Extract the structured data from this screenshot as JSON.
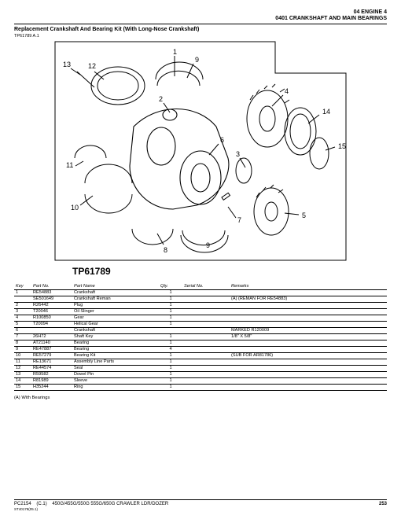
{
  "header": {
    "line1": "04 ENGINE  4",
    "line2": "0401 CRANKSHAFT AND MAIN BEARINGS"
  },
  "title": "Replacement Crankshaft And Bearing Kit (With Long-Nose Crankshaft)",
  "figure_ref": "TP61789 A.1",
  "diagram": {
    "label": "TP61789",
    "callouts": [
      "1",
      "2",
      "3",
      "4",
      "5",
      "6",
      "7",
      "8",
      "9",
      "10",
      "11",
      "12",
      "13",
      "14",
      "15"
    ],
    "stroke": "#000000",
    "fill": "#ffffff"
  },
  "table": {
    "headers": {
      "key": "Key",
      "part_no": "Part No.",
      "part_name": "Part Name",
      "qty": "Qty.",
      "serial_no": "Serial No.",
      "remarks": "Remarks"
    },
    "rows": [
      {
        "key": "1",
        "part_no": "RE54883",
        "part_name": "Crankshaft",
        "qty": "1",
        "serial_no": "",
        "remarks": ""
      },
      {
        "key": "",
        "part_no": "SE501649",
        "part_name": "Crankshaft Reman",
        "qty": "1",
        "serial_no": "",
        "remarks": "(A) (REMAN FOR RE54883)"
      },
      {
        "key": "2",
        "part_no": "R26442",
        "part_name": "Plug",
        "qty": "1",
        "serial_no": "",
        "remarks": ""
      },
      {
        "key": "3",
        "part_no": "T20046",
        "part_name": "Oil Slinger",
        "qty": "1",
        "serial_no": "",
        "remarks": ""
      },
      {
        "key": "4",
        "part_no": "R100850",
        "part_name": "Gear",
        "qty": "1",
        "serial_no": "",
        "remarks": ""
      },
      {
        "key": "5",
        "part_no": "T20094",
        "part_name": "Helical Gear",
        "qty": "1",
        "serial_no": "",
        "remarks": ""
      },
      {
        "key": "6",
        "part_no": "",
        "part_name": "Crankshaft",
        "qty": "",
        "serial_no": "",
        "remarks": "MARKED R120009"
      },
      {
        "key": "7",
        "part_no": "26H72",
        "part_name": "Shaft Key",
        "qty": "1",
        "serial_no": "",
        "remarks": "1/8\" X 5/8\""
      },
      {
        "key": "8",
        "part_no": "AT21140",
        "part_name": "Bearing",
        "qty": "1",
        "serial_no": "",
        "remarks": ""
      },
      {
        "key": "9",
        "part_no": "RE47887",
        "part_name": "Bearing",
        "qty": "4",
        "serial_no": "",
        "remarks": ""
      },
      {
        "key": "10",
        "part_no": "RE57279",
        "part_name": "Bearing Kit",
        "qty": "1",
        "serial_no": "",
        "remarks": "(SUB FOR AR81786)"
      },
      {
        "key": "11",
        "part_no": "RE13671",
        "part_name": "Assembly Line Parts",
        "qty": "1",
        "serial_no": "",
        "remarks": ""
      },
      {
        "key": "12",
        "part_no": "RE44574",
        "part_name": "Seal",
        "qty": "1",
        "serial_no": "",
        "remarks": ""
      },
      {
        "key": "13",
        "part_no": "R59582",
        "part_name": "Dowel Pin",
        "qty": "1",
        "serial_no": "",
        "remarks": ""
      },
      {
        "key": "14",
        "part_no": "R81989",
        "part_name": "Sleeve",
        "qty": "1",
        "serial_no": "",
        "remarks": ""
      },
      {
        "key": "15",
        "part_no": "H35244",
        "part_name": "Ring",
        "qty": "1",
        "serial_no": "",
        "remarks": ""
      }
    ]
  },
  "note": "(A) With Bearings",
  "footer": {
    "pub": "PC2154",
    "rev": "(C.1)",
    "models": "450G/455G/550G 555G/650G CRAWLER LDR/DOZER",
    "page": "253",
    "subid": "ST40179(05.1)"
  }
}
